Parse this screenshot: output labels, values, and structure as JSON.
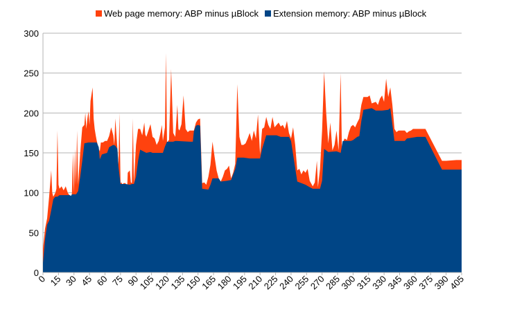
{
  "chart_data": {
    "type": "area",
    "stacked": true,
    "title": "",
    "xlabel": "",
    "ylabel": "",
    "xlim": [
      0,
      405
    ],
    "ylim": [
      0,
      300
    ],
    "grid": true,
    "legend_position": "top",
    "y_ticks": [
      0,
      50,
      100,
      150,
      200,
      250,
      300
    ],
    "x_ticks": [
      0,
      15,
      30,
      45,
      60,
      75,
      90,
      105,
      120,
      135,
      150,
      165,
      180,
      195,
      210,
      225,
      240,
      255,
      270,
      285,
      300,
      315,
      330,
      345,
      360,
      375,
      390,
      405
    ],
    "series": [
      {
        "name": "Extension memory: ABP minus µBlock",
        "color": "#004586",
        "points": [
          [
            0,
            12
          ],
          [
            2,
            42
          ],
          [
            4,
            60
          ],
          [
            6,
            65
          ],
          [
            8,
            78
          ],
          [
            10,
            92
          ],
          [
            12,
            95
          ],
          [
            14,
            95
          ],
          [
            16,
            97
          ],
          [
            20,
            97
          ],
          [
            26,
            97
          ],
          [
            27,
            96
          ],
          [
            28,
            98
          ],
          [
            32,
            98
          ],
          [
            34,
            102
          ],
          [
            36,
            120
          ],
          [
            38,
            140
          ],
          [
            40,
            162
          ],
          [
            44,
            163
          ],
          [
            52,
            163
          ],
          [
            54,
            157
          ],
          [
            55,
            142
          ],
          [
            57,
            148
          ],
          [
            62,
            150
          ],
          [
            64,
            157
          ],
          [
            68,
            160
          ],
          [
            70,
            159
          ],
          [
            72,
            155
          ],
          [
            73,
            133
          ],
          [
            75,
            111
          ],
          [
            80,
            111
          ],
          [
            84,
            110
          ],
          [
            86,
            111
          ],
          [
            88,
            111
          ],
          [
            90,
            120
          ],
          [
            92,
            140
          ],
          [
            94,
            154
          ],
          [
            97,
            152
          ],
          [
            100,
            150
          ],
          [
            104,
            151
          ],
          [
            106,
            150
          ],
          [
            116,
            150
          ],
          [
            118,
            158
          ],
          [
            120,
            164
          ],
          [
            126,
            164
          ],
          [
            128,
            165
          ],
          [
            142,
            164
          ],
          [
            145,
            164
          ],
          [
            146,
            177
          ],
          [
            148,
            184
          ],
          [
            150,
            185
          ],
          [
            152,
            184
          ],
          [
            154,
            105
          ],
          [
            160,
            104
          ],
          [
            162,
            110
          ],
          [
            164,
            118
          ],
          [
            170,
            118
          ],
          [
            172,
            114
          ],
          [
            178,
            115
          ],
          [
            182,
            116
          ],
          [
            186,
            130
          ],
          [
            188,
            144
          ],
          [
            194,
            144
          ],
          [
            200,
            143
          ],
          [
            210,
            143
          ],
          [
            212,
            155
          ],
          [
            216,
            172
          ],
          [
            226,
            172
          ],
          [
            230,
            170
          ],
          [
            234,
            170
          ],
          [
            238,
            170
          ],
          [
            240,
            165
          ],
          [
            246,
            114
          ],
          [
            250,
            112
          ],
          [
            254,
            110
          ],
          [
            258,
            107
          ],
          [
            261,
            105
          ],
          [
            265,
            105
          ],
          [
            268,
            105
          ],
          [
            270,
            115
          ],
          [
            272,
            155
          ],
          [
            274,
            153
          ],
          [
            276,
            151
          ],
          [
            284,
            152
          ],
          [
            288,
            150
          ],
          [
            290,
            165
          ],
          [
            294,
            165
          ],
          [
            296,
            165
          ],
          [
            298,
            165
          ],
          [
            300,
            166
          ],
          [
            304,
            170
          ],
          [
            306,
            171
          ],
          [
            308,
            190
          ],
          [
            310,
            204
          ],
          [
            314,
            205
          ],
          [
            318,
            206
          ],
          [
            322,
            203
          ],
          [
            328,
            203
          ],
          [
            334,
            204
          ],
          [
            336,
            206
          ],
          [
            340,
            165
          ],
          [
            346,
            165
          ],
          [
            350,
            165
          ],
          [
            352,
            168
          ],
          [
            362,
            170
          ],
          [
            368,
            170
          ],
          [
            370,
            170
          ],
          [
            386,
            129
          ],
          [
            390,
            129
          ],
          [
            400,
            129
          ],
          [
            405,
            129
          ]
        ]
      },
      {
        "name": "Web page memory: ABP minus µBlock",
        "color": "#ff420e",
        "points": [
          [
            0,
            30
          ],
          [
            2,
            55
          ],
          [
            4,
            68
          ],
          [
            6,
            95
          ],
          [
            8,
            128
          ],
          [
            9,
            100
          ],
          [
            10,
            95
          ],
          [
            12,
            100
          ],
          [
            13,
            105
          ],
          [
            14,
            178
          ],
          [
            15,
            110
          ],
          [
            16,
            105
          ],
          [
            18,
            108
          ],
          [
            20,
            103
          ],
          [
            22,
            108
          ],
          [
            24,
            100
          ],
          [
            26,
            96
          ],
          [
            27,
            90
          ],
          [
            28,
            100
          ],
          [
            29,
            150
          ],
          [
            30,
            100
          ],
          [
            31,
            155
          ],
          [
            32,
            110
          ],
          [
            33,
            178
          ],
          [
            34,
            110
          ],
          [
            36,
            150
          ],
          [
            38,
            182
          ],
          [
            40,
            185
          ],
          [
            41,
            200
          ],
          [
            42,
            180
          ],
          [
            43,
            193
          ],
          [
            44,
            202
          ],
          [
            45,
            185
          ],
          [
            46,
            215
          ],
          [
            48,
            232
          ],
          [
            49,
            193
          ],
          [
            50,
            180
          ],
          [
            51,
            172
          ],
          [
            52,
            165
          ],
          [
            54,
            155
          ],
          [
            55,
            152
          ],
          [
            56,
            163
          ],
          [
            58,
            163
          ],
          [
            60,
            165
          ],
          [
            62,
            165
          ],
          [
            64,
            171
          ],
          [
            66,
            182
          ],
          [
            68,
            172
          ],
          [
            69,
            160
          ],
          [
            70,
            193
          ],
          [
            72,
            155
          ],
          [
            73,
            135
          ],
          [
            74,
            200
          ],
          [
            75,
            112
          ],
          [
            76,
            113
          ],
          [
            77,
            110
          ],
          [
            78,
            112
          ],
          [
            80,
            112
          ],
          [
            81,
            90
          ],
          [
            82,
            125
          ],
          [
            84,
            128
          ],
          [
            85,
            113
          ],
          [
            86,
            112
          ],
          [
            87,
            193
          ],
          [
            88,
            112
          ],
          [
            90,
            160
          ],
          [
            92,
            180
          ],
          [
            94,
            180
          ],
          [
            96,
            172
          ],
          [
            98,
            188
          ],
          [
            99,
            173
          ],
          [
            100,
            170
          ],
          [
            102,
            178
          ],
          [
            104,
            186
          ],
          [
            106,
            170
          ],
          [
            108,
            168
          ],
          [
            110,
            160
          ],
          [
            112,
            165
          ],
          [
            114,
            177
          ],
          [
            115,
            185
          ],
          [
            116,
            165
          ],
          [
            118,
            182
          ],
          [
            119,
            275
          ],
          [
            120,
            160
          ],
          [
            121,
            165
          ],
          [
            122,
            166
          ],
          [
            124,
            255
          ],
          [
            126,
            175
          ],
          [
            128,
            170
          ],
          [
            130,
            210
          ],
          [
            131,
            180
          ],
          [
            132,
            178
          ],
          [
            134,
            186
          ],
          [
            136,
            222
          ],
          [
            138,
            180
          ],
          [
            140,
            176
          ],
          [
            142,
            178
          ],
          [
            144,
            178
          ],
          [
            146,
            178
          ],
          [
            148,
            188
          ],
          [
            150,
            192
          ],
          [
            152,
            193
          ],
          [
            154,
            112
          ],
          [
            156,
            113
          ],
          [
            158,
            110
          ],
          [
            160,
            120
          ],
          [
            162,
            135
          ],
          [
            164,
            164
          ],
          [
            166,
            145
          ],
          [
            168,
            128
          ],
          [
            170,
            118
          ],
          [
            172,
            114
          ],
          [
            174,
            120
          ],
          [
            176,
            128
          ],
          [
            178,
            130
          ],
          [
            180,
            134
          ],
          [
            182,
            118
          ],
          [
            184,
            125
          ],
          [
            186,
            136
          ],
          [
            188,
            236
          ],
          [
            190,
            170
          ],
          [
            192,
            160
          ],
          [
            194,
            160
          ],
          [
            196,
            162
          ],
          [
            198,
            168
          ],
          [
            200,
            175
          ],
          [
            202,
            165
          ],
          [
            204,
            178
          ],
          [
            206,
            168
          ],
          [
            208,
            198
          ],
          [
            210,
            148
          ],
          [
            212,
            180
          ],
          [
            214,
            182
          ],
          [
            216,
            195
          ],
          [
            218,
            185
          ],
          [
            220,
            180
          ],
          [
            222,
            195
          ],
          [
            224,
            182
          ],
          [
            226,
            185
          ],
          [
            228,
            188
          ],
          [
            230,
            183
          ],
          [
            232,
            185
          ],
          [
            234,
            180
          ],
          [
            236,
            190
          ],
          [
            238,
            175
          ],
          [
            240,
            168
          ],
          [
            242,
            182
          ],
          [
            244,
            160
          ],
          [
            246,
            128
          ],
          [
            248,
            130
          ],
          [
            250,
            123
          ],
          [
            252,
            128
          ],
          [
            254,
            125
          ],
          [
            256,
            130
          ],
          [
            258,
            115
          ],
          [
            261,
            108
          ],
          [
            263,
            113
          ],
          [
            265,
            140
          ],
          [
            266,
            107
          ],
          [
            268,
            130
          ],
          [
            270,
            178
          ],
          [
            272,
            252
          ],
          [
            274,
            200
          ],
          [
            276,
            162
          ],
          [
            278,
            188
          ],
          [
            280,
            153
          ],
          [
            282,
            160
          ],
          [
            284,
            178
          ],
          [
            285,
            165
          ],
          [
            286,
            153
          ],
          [
            288,
            250
          ],
          [
            290,
            90
          ],
          [
            291,
            166
          ],
          [
            292,
            168
          ],
          [
            294,
            166
          ],
          [
            296,
            176
          ],
          [
            298,
            183
          ],
          [
            300,
            185
          ],
          [
            302,
            182
          ],
          [
            304,
            188
          ],
          [
            306,
            193
          ],
          [
            308,
            210
          ],
          [
            310,
            220
          ],
          [
            314,
            220
          ],
          [
            316,
            222
          ],
          [
            318,
            212
          ],
          [
            322,
            214
          ],
          [
            324,
            210
          ],
          [
            326,
            218
          ],
          [
            328,
            222
          ],
          [
            330,
            214
          ],
          [
            332,
            243
          ],
          [
            334,
            220
          ],
          [
            336,
            232
          ],
          [
            338,
            210
          ],
          [
            340,
            180
          ],
          [
            342,
            176
          ],
          [
            344,
            178
          ],
          [
            350,
            178
          ],
          [
            352,
            175
          ],
          [
            354,
            177
          ],
          [
            356,
            178
          ],
          [
            358,
            180
          ],
          [
            362,
            180
          ],
          [
            368,
            180
          ],
          [
            370,
            180
          ],
          [
            386,
            140
          ],
          [
            390,
            140
          ],
          [
            400,
            141
          ],
          [
            405,
            141
          ]
        ]
      }
    ]
  }
}
